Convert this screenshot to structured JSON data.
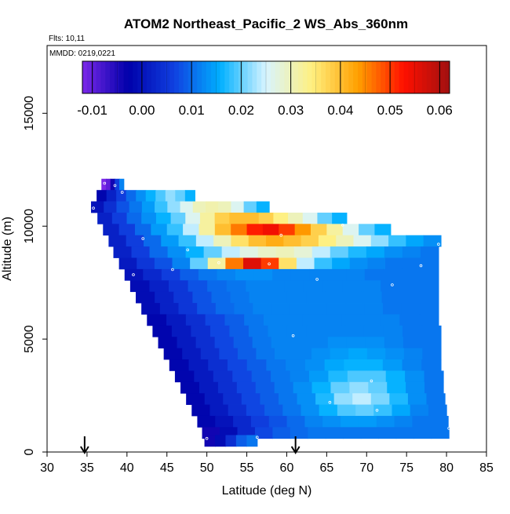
{
  "chart_data": {
    "type": "heatmap",
    "title": "ATOM2 Northeast_Pacific_2 WS_Abs_360nm",
    "flights_label": "Flts: 10,11",
    "dates_label": "MMDD: 0219,0221",
    "xlabel": "Latitude (deg N)",
    "ylabel": "Altitude (m)",
    "xlim": [
      30,
      85
    ],
    "ylim": [
      0,
      18000
    ],
    "x_ticks": [
      "30",
      "35",
      "40",
      "45",
      "50",
      "55",
      "60",
      "65",
      "70",
      "75",
      "80",
      "85"
    ],
    "y_ticks": [
      "0",
      "5000",
      "10000",
      "15000"
    ],
    "colorbar": {
      "min": -0.012,
      "max": 0.062,
      "ticks": [
        "-0.01",
        "0.00",
        "0.01",
        "0.02",
        "0.03",
        "0.04",
        "0.05",
        "0.06"
      ],
      "colors": [
        "#7b28e8",
        "#0000aa",
        "#1040e0",
        "#00b0ff",
        "#d8f4ff",
        "#fff080",
        "#ffa000",
        "#ff1000",
        "#a01010"
      ]
    },
    "arrows_at_latitude": [
      34.7,
      61.1
    ],
    "grid": false,
    "legend": "colorbar-top",
    "layers": [
      {
        "alt": 11850,
        "lat_start": 36.8,
        "lat_end": 39.6,
        "values": [
          -0.012,
          -0.01,
          -0.004,
          0.006,
          0.012
        ]
      },
      {
        "alt": 11350,
        "lat_start": 36.2,
        "lat_end": 48.5,
        "values": [
          -0.002,
          0.002,
          0.006,
          0.01,
          0.013,
          0.016,
          0.019,
          0.022,
          0.02,
          0.016
        ]
      },
      {
        "alt": 10850,
        "lat_start": 35.5,
        "lat_end": 57.8,
        "values": [
          0.0,
          0.004,
          0.008,
          0.011,
          0.014,
          0.018,
          0.022,
          0.026,
          0.03,
          0.031,
          0.03,
          0.026,
          0.02,
          0.016
        ]
      },
      {
        "alt": 10350,
        "lat_start": 36.3,
        "lat_end": 67.5,
        "values": [
          0.002,
          0.006,
          0.01,
          0.013,
          0.016,
          0.02,
          0.026,
          0.032,
          0.038,
          0.04,
          0.04,
          0.038,
          0.034,
          0.03,
          0.026,
          0.02,
          0.016
        ]
      },
      {
        "alt": 9850,
        "lat_start": 37.0,
        "lat_end": 73.0,
        "values": [
          0.002,
          0.006,
          0.01,
          0.014,
          0.018,
          0.024,
          0.032,
          0.04,
          0.046,
          0.052,
          0.054,
          0.05,
          0.044,
          0.038,
          0.032,
          0.026,
          0.02,
          0.016
        ]
      },
      {
        "alt": 9350,
        "lat_start": 37.7,
        "lat_end": 79.3,
        "values": [
          0.002,
          0.006,
          0.01,
          0.014,
          0.018,
          0.024,
          0.03,
          0.036,
          0.04,
          0.042,
          0.04,
          0.038,
          0.034,
          0.03,
          0.026,
          0.022,
          0.018,
          0.015,
          0.013
        ]
      },
      {
        "alt": 8850,
        "lat_start": 38.3,
        "lat_end": 79.0,
        "values": [
          0.002,
          0.006,
          0.01,
          0.013,
          0.016,
          0.02,
          0.024,
          0.027,
          0.029,
          0.03,
          0.028,
          0.024,
          0.02,
          0.017,
          0.015,
          0.013,
          0.012,
          0.011
        ]
      },
      {
        "alt": 8350,
        "lat_start": 39.0,
        "lat_end": 79.0,
        "values": [
          0.001,
          0.005,
          0.008,
          0.012,
          0.02,
          0.032,
          0.046,
          0.056,
          0.05,
          0.036,
          0.024,
          0.018,
          0.015,
          0.013,
          0.012,
          0.011,
          0.011,
          0.011
        ]
      },
      {
        "alt": 7850,
        "lat_start": 39.7,
        "lat_end": 79.0,
        "values": [
          0.0,
          0.003,
          0.006,
          0.009,
          0.011,
          0.012,
          0.013,
          0.013,
          0.012,
          0.012,
          0.012,
          0.012,
          0.012,
          0.011,
          0.011,
          0.011,
          0.011
        ]
      },
      {
        "alt": 7350,
        "lat_start": 40.4,
        "lat_end": 79.0,
        "values": [
          -0.001,
          0.002,
          0.005,
          0.008,
          0.01,
          0.011,
          0.012,
          0.012,
          0.012,
          0.012,
          0.012,
          0.012,
          0.012,
          0.011,
          0.011,
          0.011
        ]
      },
      {
        "alt": 6850,
        "lat_start": 41.1,
        "lat_end": 79.0,
        "values": [
          -0.001,
          0.002,
          0.005,
          0.008,
          0.01,
          0.011,
          0.012,
          0.012,
          0.012,
          0.012,
          0.012,
          0.012,
          0.012,
          0.011,
          0.011,
          0.011
        ]
      },
      {
        "alt": 6350,
        "lat_start": 41.8,
        "lat_end": 79.0,
        "values": [
          -0.001,
          0.002,
          0.005,
          0.008,
          0.01,
          0.011,
          0.012,
          0.012,
          0.012,
          0.012,
          0.012,
          0.012,
          0.012,
          0.011,
          0.011,
          0.011
        ]
      },
      {
        "alt": 5850,
        "lat_start": 42.5,
        "lat_end": 79.0,
        "values": [
          -0.002,
          0.001,
          0.004,
          0.007,
          0.009,
          0.011,
          0.012,
          0.012,
          0.012,
          0.012,
          0.012,
          0.012,
          0.012,
          0.011,
          0.011
        ]
      },
      {
        "alt": 5350,
        "lat_start": 43.2,
        "lat_end": 79.3,
        "values": [
          -0.002,
          0.001,
          0.004,
          0.007,
          0.009,
          0.011,
          0.012,
          0.012,
          0.012,
          0.012,
          0.012,
          0.012,
          0.012,
          0.011,
          0.011
        ]
      },
      {
        "alt": 4850,
        "lat_start": 43.9,
        "lat_end": 79.3,
        "values": [
          -0.002,
          0.001,
          0.004,
          0.007,
          0.009,
          0.011,
          0.012,
          0.012,
          0.012,
          0.013,
          0.013,
          0.013,
          0.012,
          0.011,
          0.011
        ]
      },
      {
        "alt": 4350,
        "lat_start": 44.6,
        "lat_end": 79.3,
        "values": [
          -0.002,
          0.001,
          0.004,
          0.007,
          0.009,
          0.011,
          0.012,
          0.012,
          0.013,
          0.014,
          0.015,
          0.014,
          0.013,
          0.012,
          0.011
        ]
      },
      {
        "alt": 3850,
        "lat_start": 45.3,
        "lat_end": 79.3,
        "values": [
          -0.002,
          0.001,
          0.004,
          0.007,
          0.009,
          0.011,
          0.012,
          0.013,
          0.015,
          0.016,
          0.016,
          0.014,
          0.012,
          0.011
        ]
      },
      {
        "alt": 3350,
        "lat_start": 46.0,
        "lat_end": 79.6,
        "values": [
          -0.002,
          0.001,
          0.004,
          0.007,
          0.009,
          0.011,
          0.012,
          0.014,
          0.017,
          0.019,
          0.019,
          0.016,
          0.013,
          0.011
        ]
      },
      {
        "alt": 2850,
        "lat_start": 46.7,
        "lat_end": 79.6,
        "values": [
          -0.002,
          0.001,
          0.004,
          0.007,
          0.009,
          0.011,
          0.013,
          0.016,
          0.02,
          0.022,
          0.02,
          0.016,
          0.013,
          0.011
        ]
      },
      {
        "alt": 2350,
        "lat_start": 47.4,
        "lat_end": 79.8,
        "values": [
          -0.002,
          0.001,
          0.004,
          0.007,
          0.009,
          0.011,
          0.013,
          0.017,
          0.022,
          0.024,
          0.021,
          0.017,
          0.013,
          0.011
        ]
      },
      {
        "alt": 1850,
        "lat_start": 48.1,
        "lat_end": 80.0,
        "values": [
          -0.002,
          0.001,
          0.004,
          0.007,
          0.009,
          0.011,
          0.013,
          0.016,
          0.019,
          0.02,
          0.018,
          0.015,
          0.012,
          0.011
        ]
      },
      {
        "alt": 1350,
        "lat_start": 48.8,
        "lat_end": 80.2,
        "values": [
          -0.002,
          0.0,
          0.003,
          0.006,
          0.008,
          0.01,
          0.012,
          0.013,
          0.014,
          0.014,
          0.013,
          0.012,
          0.011,
          0.011
        ]
      },
      {
        "alt": 850,
        "lat_start": 49.4,
        "lat_end": 80.3,
        "values": [
          -0.004,
          -0.001,
          0.003,
          0.007,
          0.009,
          0.01,
          0.011,
          0.011,
          0.011,
          0.011,
          0.011,
          0.011,
          0.011,
          0.011
        ]
      },
      {
        "alt": 500,
        "lat_start": 49.7,
        "lat_end": 56.3,
        "values": [
          -0.004,
          -0.001,
          0.004,
          0.009,
          0.011
        ]
      }
    ],
    "sample_points": [
      {
        "lat": 37.2,
        "alt": 11900
      },
      {
        "lat": 38.5,
        "alt": 11800
      },
      {
        "lat": 39.4,
        "alt": 11500
      },
      {
        "lat": 35.8,
        "alt": 10800
      },
      {
        "lat": 67.0,
        "alt": 10050
      },
      {
        "lat": 42.0,
        "alt": 9450
      },
      {
        "lat": 59.3,
        "alt": 9600
      },
      {
        "lat": 79.0,
        "alt": 9200
      },
      {
        "lat": 47.6,
        "alt": 8950
      },
      {
        "lat": 51.5,
        "alt": 8380
      },
      {
        "lat": 57.8,
        "alt": 8330
      },
      {
        "lat": 45.7,
        "alt": 8080
      },
      {
        "lat": 76.8,
        "alt": 8250
      },
      {
        "lat": 40.8,
        "alt": 7850
      },
      {
        "lat": 63.8,
        "alt": 7650
      },
      {
        "lat": 73.2,
        "alt": 7400
      },
      {
        "lat": 60.8,
        "alt": 5150
      },
      {
        "lat": 70.6,
        "alt": 3150
      },
      {
        "lat": 65.4,
        "alt": 2200
      },
      {
        "lat": 71.3,
        "alt": 1850
      },
      {
        "lat": 50.0,
        "alt": 600
      },
      {
        "lat": 56.3,
        "alt": 650
      },
      {
        "lat": 80.3,
        "alt": 1050
      }
    ]
  }
}
